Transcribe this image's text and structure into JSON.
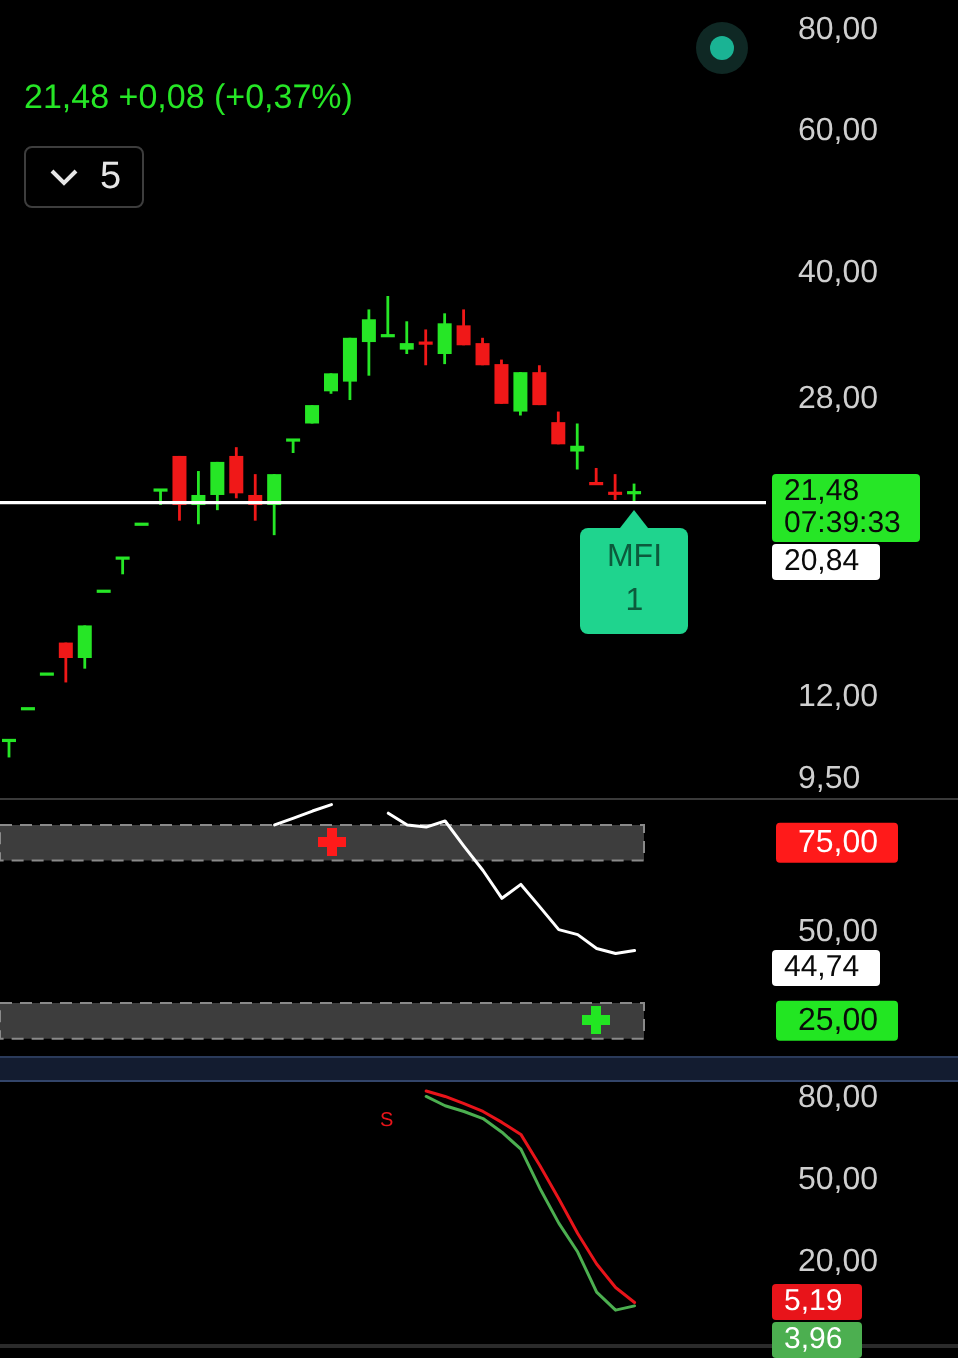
{
  "chart_data": [
    {
      "type": "candlestick",
      "subtitle": "21,48 +0,08 (+0,37%)",
      "categories": [
        null,
        null,
        null,
        null,
        null,
        null,
        null,
        null,
        null,
        null,
        null,
        null,
        null,
        null,
        null,
        null,
        null,
        null,
        null,
        null,
        null,
        null,
        null,
        null,
        null,
        null,
        null,
        null,
        null,
        null,
        null,
        null,
        null,
        null
      ],
      "ohlc": [
        [
          10.6,
          10.6,
          10.1,
          10.6
        ],
        [
          11.6,
          11.6,
          11.6,
          11.6
        ],
        [
          12.8,
          12.8,
          12.8,
          12.8
        ],
        [
          14.0,
          14.0,
          12.5,
          13.4
        ],
        [
          13.4,
          14.7,
          13.0,
          14.7
        ],
        [
          16.2,
          16.2,
          16.2,
          16.2
        ],
        [
          17.8,
          17.8,
          17.0,
          17.8
        ],
        [
          19.6,
          19.6,
          19.6,
          19.6
        ],
        [
          21.6,
          21.6,
          20.7,
          21.6
        ],
        [
          23.8,
          23.8,
          19.8,
          20.7
        ],
        [
          20.7,
          22.8,
          19.6,
          21.3
        ],
        [
          21.3,
          23.4,
          20.4,
          23.4
        ],
        [
          23.8,
          24.4,
          21.1,
          21.4
        ],
        [
          21.3,
          22.6,
          19.8,
          20.7
        ],
        [
          20.7,
          22.6,
          19.0,
          22.6
        ],
        [
          24.9,
          24.9,
          24.0,
          24.9
        ],
        [
          26.1,
          27.5,
          26.1,
          27.5
        ],
        [
          28.6,
          30.1,
          28.4,
          30.1
        ],
        [
          29.4,
          33.3,
          27.9,
          33.3
        ],
        [
          32.9,
          36.1,
          29.9,
          35.1
        ],
        [
          33.5,
          37.5,
          33.5,
          33.5
        ],
        [
          32.2,
          34.9,
          31.8,
          32.8
        ],
        [
          32.8,
          34.1,
          30.8,
          32.8
        ],
        [
          31.8,
          35.7,
          30.9,
          34.7
        ],
        [
          34.5,
          36.1,
          32.6,
          32.6
        ],
        [
          32.8,
          33.3,
          30.8,
          30.8
        ],
        [
          30.9,
          31.3,
          27.6,
          27.6
        ],
        [
          27.0,
          30.2,
          26.7,
          30.2
        ],
        [
          30.2,
          30.8,
          27.5,
          27.5
        ],
        [
          26.2,
          27.0,
          24.6,
          24.6
        ],
        [
          24.1,
          26.1,
          22.9,
          24.5
        ],
        [
          22.0,
          23.0,
          22.0,
          22.0
        ],
        [
          21.4,
          22.6,
          21.0,
          21.4
        ],
        [
          21.4,
          22.0,
          20.8,
          21.48
        ]
      ],
      "colors": [
        "#26e626",
        "#26e626",
        "#26e626",
        "#f01818",
        "#26e626",
        "#26e626",
        "#26e626",
        "#26e626",
        "#26e626",
        "#f01818",
        "#26e626",
        "#26e626",
        "#f01818",
        "#f01818",
        "#26e626",
        "#26e626",
        "#26e626",
        "#26e626",
        "#26e626",
        "#26e626",
        "#26e626",
        "#26e626",
        "#f01818",
        "#26e626",
        "#f01818",
        "#f01818",
        "#f01818",
        "#26e626",
        "#f01818",
        "#f01818",
        "#26e626",
        "#f01818",
        "#f01818",
        "#26e626"
      ],
      "log": true,
      "ylim": [
        9,
        87
      ],
      "yticks": [
        {
          "value": 9.5,
          "label": "9,50"
        },
        {
          "value": 12,
          "label": "12,00"
        },
        {
          "value": 28,
          "label": "28,00"
        },
        {
          "value": 40,
          "label": "40,00"
        },
        {
          "value": 60,
          "label": "60,00"
        },
        {
          "value": 80,
          "label": "80,00"
        }
      ],
      "tick_labels": "y",
      "ref_lines": [
        {
          "axis": "y",
          "value": 20.84,
          "label": "20,84",
          "color": "#ffffff"
        }
      ],
      "annotations": [
        "21,48 07:39:33",
        "MFI 1",
        "5"
      ]
    },
    {
      "type": "line",
      "categories": [
        null,
        null,
        null,
        null,
        null,
        null,
        null,
        null,
        null,
        null,
        null,
        null,
        null,
        null,
        null,
        null,
        null,
        null,
        null,
        null,
        null,
        null,
        null,
        null,
        null,
        null,
        null,
        null,
        null,
        null,
        null,
        null,
        null,
        null
      ],
      "series": [
        {
          "color": "#ffffff",
          "values": [
            null,
            null,
            null,
            null,
            null,
            null,
            null,
            null,
            null,
            null,
            null,
            null,
            null,
            null,
            80.0,
            81.9,
            83.9,
            85.7,
            null,
            null,
            83.3,
            80.0,
            79.4,
            81.1,
            74.0,
            67.2,
            59.4,
            63.3,
            57.0,
            50.6,
            49.2,
            45.3,
            43.9,
            44.74
          ]
        }
      ],
      "ylim": [
        14,
        87
      ],
      "yticks": [
        {
          "value": 75,
          "label": "75,00"
        },
        {
          "value": 50,
          "label": "50,00"
        },
        {
          "value": 25,
          "label": "25,00"
        }
      ],
      "tick_labels": "y",
      "bands": [
        {
          "axis": "y",
          "from": 70,
          "to": 80,
          "color": "#3d3d3d"
        },
        {
          "axis": "y",
          "from": 20,
          "to": 30,
          "color": "#3d3d3d"
        }
      ],
      "annotations": [
        "44,74"
      ]
    },
    {
      "type": "line",
      "categories": [
        null,
        null,
        null,
        null,
        null,
        null,
        null,
        null,
        null,
        null,
        null,
        null,
        null,
        null,
        null,
        null,
        null,
        null,
        null,
        null,
        null,
        null,
        null,
        null,
        null,
        null,
        null,
        null,
        null,
        null,
        null,
        null,
        null,
        null
      ],
      "series": [
        {
          "color": "#e8141a",
          "values": [
            null,
            null,
            null,
            null,
            null,
            null,
            null,
            null,
            null,
            null,
            null,
            null,
            null,
            null,
            null,
            null,
            null,
            null,
            null,
            null,
            null,
            null,
            82.7,
            80.7,
            78.1,
            75.2,
            71.2,
            66.8,
            55.4,
            43.2,
            30.5,
            19.3,
            10.7,
            5.19
          ]
        },
        {
          "color": "#4caf50",
          "values": [
            null,
            null,
            null,
            null,
            null,
            null,
            null,
            null,
            null,
            null,
            null,
            null,
            null,
            null,
            null,
            null,
            null,
            null,
            null,
            null,
            null,
            null,
            80.7,
            77.3,
            75.2,
            72.6,
            67.6,
            61.4,
            47.1,
            34.3,
            23.7,
            9.0,
            2.4,
            3.96
          ]
        }
      ],
      "ylim": [
        -10,
        86
      ],
      "yticks": [
        {
          "value": 80,
          "label": "80,00"
        },
        {
          "value": 50,
          "label": "50,00"
        },
        {
          "value": 20,
          "label": "20,00"
        }
      ],
      "tick_labels": "y",
      "annotations": [
        "5,19",
        "3,96",
        "S"
      ]
    }
  ]
}
